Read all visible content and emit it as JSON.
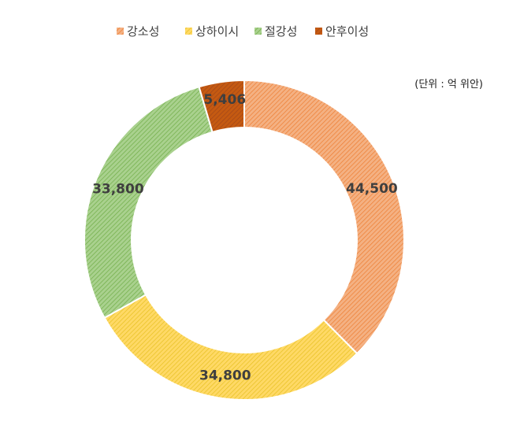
{
  "chart_data": {
    "type": "pie",
    "variant": "doughnut",
    "unit": "(단위 : 억 위안)",
    "legend_position": "top",
    "categories": [
      "강소성",
      "상하이시",
      "절강성",
      "안후이성"
    ],
    "values": [
      44500,
      34800,
      33800,
      5406
    ],
    "value_labels": [
      "44,500",
      "34,800",
      "33,800",
      "5,406"
    ],
    "colors": [
      "#f4b183",
      "#ffd966",
      "#a9d18e",
      "#c55a11"
    ],
    "line_colors": [
      "#ed7d31",
      "#e6c020",
      "#70ad47",
      "#a0451a"
    ]
  }
}
